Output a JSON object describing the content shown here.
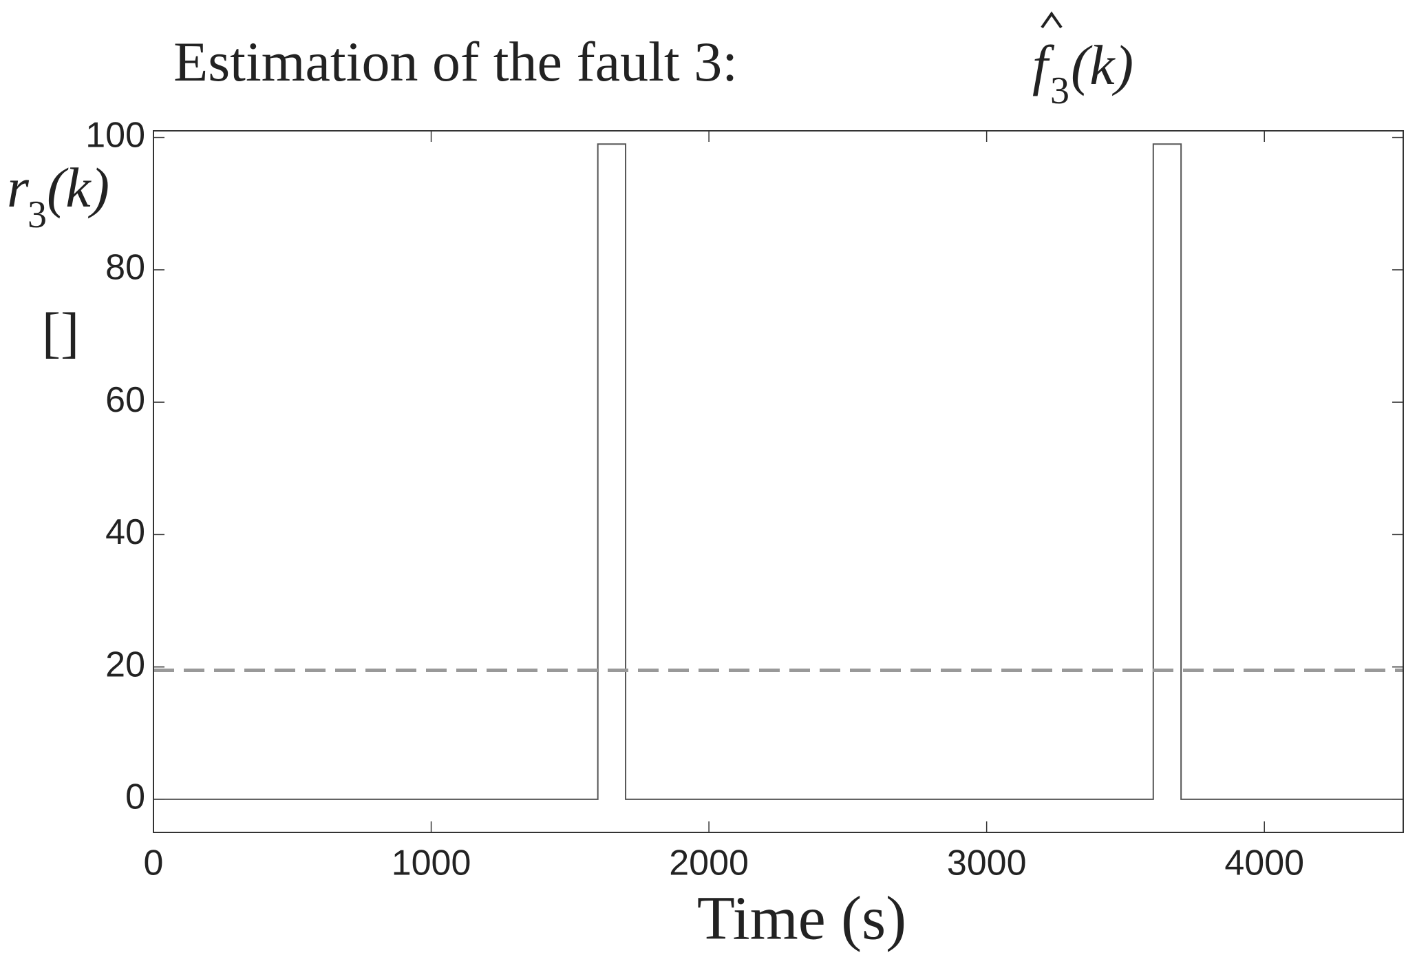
{
  "chart_data": {
    "type": "line",
    "title": "Estimation of the fault 3:",
    "title_symbol": "f",
    "title_subscript": "3",
    "title_argument": "(k)",
    "ylabel_symbol": "r",
    "ylabel_subscript": "3",
    "ylabel_argument": "(k)",
    "ylabel_unit": "[]",
    "xlabel": "Time (s)",
    "xlim": [
      0,
      4500
    ],
    "xticks": [
      0,
      1000,
      2000,
      3000,
      4000
    ],
    "ylim": [
      -5,
      101
    ],
    "yticks": [
      0,
      20,
      40,
      60,
      80,
      100
    ],
    "series": [
      {
        "x": [
          0,
          1600,
          1600,
          1700,
          1700,
          3600,
          3600,
          3700,
          3700,
          4500
        ],
        "values": [
          0,
          0,
          99,
          99,
          0,
          0,
          99,
          99,
          0,
          0
        ],
        "color": "#555555",
        "dash": false
      },
      {
        "x": [
          0,
          4500
        ],
        "values": [
          19.5,
          19.5
        ],
        "color": "#999999",
        "dash": true
      }
    ]
  }
}
